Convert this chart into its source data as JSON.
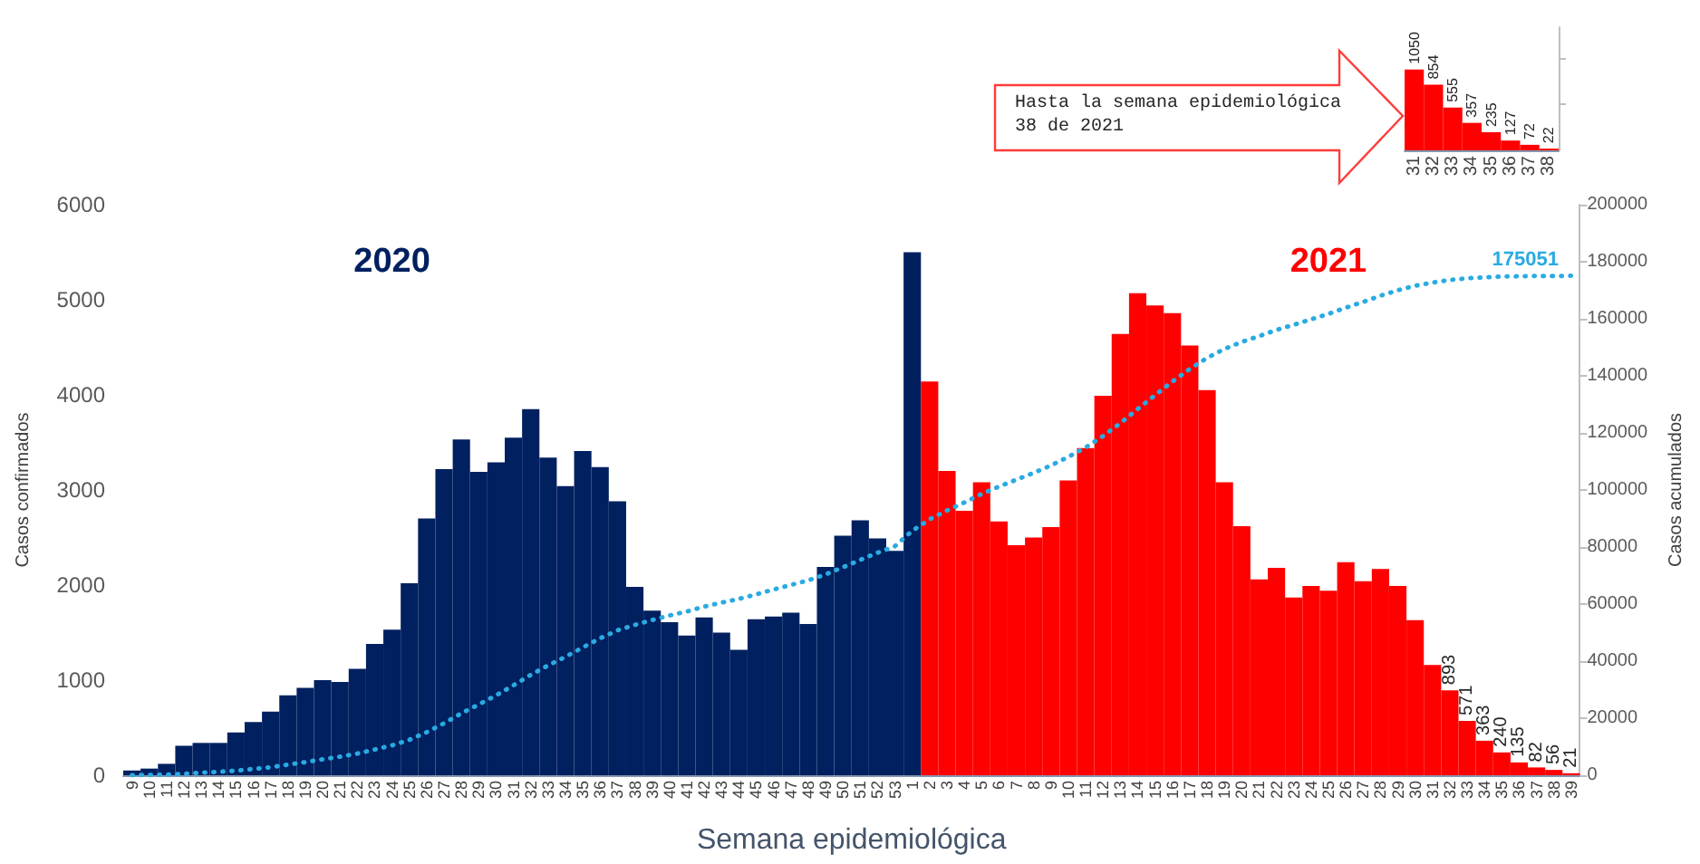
{
  "chart_data": [
    {
      "type": "bar",
      "xlabel": "Semana epidemiológica",
      "ylabel": "Casos confirmados",
      "y2label": "Casos acumulados",
      "categories": [
        "9",
        "10",
        "11",
        "12",
        "13",
        "14",
        "15",
        "16",
        "17",
        "18",
        "19",
        "20",
        "21",
        "22",
        "23",
        "24",
        "25",
        "26",
        "27",
        "28",
        "29",
        "30",
        "31",
        "32",
        "33",
        "34",
        "35",
        "36",
        "37",
        "38",
        "39",
        "40",
        "41",
        "42",
        "43",
        "44",
        "45",
        "46",
        "47",
        "48",
        "49",
        "50",
        "51",
        "52",
        "53",
        "1",
        "2",
        "3",
        "4",
        "5",
        "6",
        "7",
        "8",
        "9",
        "10",
        "11",
        "12",
        "13",
        "14",
        "15",
        "16",
        "17",
        "18",
        "19",
        "20",
        "21",
        "22",
        "23",
        "24",
        "25",
        "26",
        "27",
        "28",
        "29",
        "30",
        "31",
        "32",
        "33",
        "34",
        "35",
        "36",
        "37",
        "38",
        "39"
      ],
      "series": [
        {
          "name": "2020",
          "color": "#002060",
          "values": [
            50,
            70,
            120,
            310,
            340,
            340,
            450,
            560,
            670,
            840,
            920,
            1000,
            980,
            1120,
            1380,
            1530,
            2020,
            2700,
            3220,
            3530,
            3190,
            3290,
            3550,
            3850,
            3340,
            3040,
            3410,
            3240,
            2880,
            1980,
            1730,
            1610,
            1470,
            1660,
            1500,
            1320,
            1640,
            1670,
            1710,
            1590,
            2190,
            2520,
            2680,
            2490,
            2360,
            5500,
            null,
            null,
            null,
            null,
            null,
            null,
            null,
            null,
            null,
            null,
            null,
            null,
            null,
            null,
            null,
            null,
            null,
            null,
            null,
            null,
            null,
            null,
            null,
            null,
            null,
            null,
            null,
            null,
            null,
            null,
            null,
            null,
            null,
            null,
            null,
            null,
            null,
            null
          ]
        },
        {
          "name": "2021",
          "color": "#ff0000",
          "values": [
            null,
            null,
            null,
            null,
            null,
            null,
            null,
            null,
            null,
            null,
            null,
            null,
            null,
            null,
            null,
            null,
            null,
            null,
            null,
            null,
            null,
            null,
            null,
            null,
            null,
            null,
            null,
            null,
            null,
            null,
            null,
            null,
            null,
            null,
            null,
            null,
            null,
            null,
            null,
            null,
            null,
            null,
            null,
            null,
            null,
            null,
            4140,
            3200,
            2780,
            3080,
            2670,
            2420,
            2500,
            2610,
            3100,
            3440,
            3990,
            4640,
            5070,
            4940,
            4860,
            4520,
            4050,
            3080,
            2620,
            2060,
            2180,
            1870,
            1990,
            1940,
            2240,
            2040,
            2170,
            1990,
            1630,
            1160,
            893,
            571,
            363,
            240,
            135,
            82,
            56,
            21
          ],
          "value_labels": [
            null,
            null,
            null,
            null,
            null,
            null,
            null,
            null,
            null,
            null,
            null,
            null,
            null,
            null,
            null,
            null,
            null,
            null,
            null,
            null,
            null,
            null,
            null,
            null,
            null,
            null,
            null,
            null,
            null,
            null,
            null,
            null,
            null,
            null,
            null,
            null,
            null,
            null,
            null,
            null,
            null,
            null,
            null,
            null,
            null,
            null,
            null,
            null,
            null,
            null,
            null,
            null,
            null,
            null,
            null,
            null,
            null,
            null,
            null,
            null,
            null,
            null,
            null,
            null,
            null,
            null,
            null,
            null,
            null,
            null,
            null,
            null,
            null,
            null,
            null,
            null,
            "893",
            "571",
            "363",
            "240",
            "135",
            "82",
            "56",
            "21"
          ]
        },
        {
          "type": "line",
          "axis": "y2",
          "color": "#29abe2",
          "line_style": "dotted",
          "marker": "none",
          "values": [
            0,
            100,
            200,
            500,
            900,
            1200,
            1600,
            2200,
            2800,
            3700,
            4600,
            5600,
            6500,
            7600,
            9000,
            10500,
            12400,
            15100,
            18200,
            21700,
            24800,
            28000,
            31500,
            35200,
            38500,
            41500,
            44800,
            48000,
            50800,
            52700,
            54400,
            56000,
            57400,
            59100,
            60500,
            61800,
            63400,
            65100,
            66700,
            68300,
            70400,
            72900,
            75500,
            78000,
            80300,
            85700,
            89700,
            92800,
            95600,
            98600,
            101200,
            103600,
            106000,
            108600,
            111600,
            114900,
            118900,
            123400,
            128400,
            133200,
            138000,
            142400,
            146300,
            149400,
            151900,
            153900,
            156100,
            157900,
            159800,
            161700,
            163900,
            165900,
            168100,
            170000,
            171600,
            172700,
            173600,
            174200,
            174500,
            174800,
            174900,
            175000,
            175000,
            175051
          ],
          "value_labels": [
            null,
            null,
            null,
            null,
            null,
            null,
            null,
            null,
            null,
            null,
            null,
            null,
            null,
            null,
            null,
            null,
            null,
            null,
            null,
            null,
            null,
            null,
            null,
            null,
            null,
            null,
            null,
            null,
            null,
            null,
            null,
            null,
            null,
            null,
            null,
            null,
            null,
            null,
            null,
            null,
            null,
            null,
            null,
            null,
            null,
            null,
            null,
            null,
            null,
            null,
            null,
            null,
            null,
            null,
            null,
            null,
            null,
            null,
            null,
            null,
            null,
            null,
            null,
            null,
            null,
            null,
            null,
            null,
            null,
            null,
            null,
            null,
            null,
            null,
            null,
            null,
            null,
            null,
            null,
            null,
            null,
            null,
            null,
            "175051"
          ]
        }
      ],
      "ylim": [
        0,
        6000
      ],
      "yticks": [
        0,
        1000,
        2000,
        3000,
        4000,
        5000,
        6000
      ],
      "y2lim": [
        0,
        200000
      ],
      "y2ticks": [
        0,
        20000,
        40000,
        60000,
        80000,
        100000,
        120000,
        140000,
        160000,
        180000,
        200000
      ],
      "grid": false,
      "legend": false
    },
    {
      "type": "bar",
      "categories": [
        "31",
        "32",
        "33",
        "34",
        "35",
        "36",
        "37",
        "38"
      ],
      "values": [
        1050,
        854,
        555,
        357,
        235,
        127,
        72,
        22
      ],
      "color": "#ff0000",
      "data_labels": true,
      "ylim": [
        0,
        1600
      ],
      "yticks": [
        {
          "value": 600,
          "label": null
        },
        {
          "value": 1200,
          "label": null
        }
      ],
      "tick_labels": "x",
      "annotations": [
        "Hasta la semana epidemiológica\n38 de 2021"
      ]
    }
  ]
}
